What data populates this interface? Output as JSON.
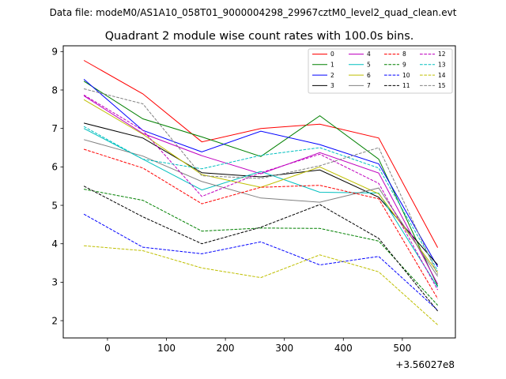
{
  "figure": {
    "suptitle": "Data file: modeM0/AS1A10_058T01_9000004298_29967cztM0_level2_quad_clean.evt"
  },
  "chart_data": {
    "type": "line",
    "title": "Quadrant 2 module wise count rates with 100.0s bins.",
    "xlabel": "",
    "ylabel": "",
    "x_offset_label": "+3.56027e8",
    "xlim": [
      -75,
      590
    ],
    "ylim": [
      1.55,
      9.15
    ],
    "xticks": [
      0,
      100,
      200,
      300,
      400,
      500
    ],
    "xtick_labels": [
      "0",
      "100",
      "200",
      "300",
      "400",
      "500"
    ],
    "yticks": [
      2,
      3,
      4,
      5,
      6,
      7,
      8,
      9
    ],
    "ytick_labels": [
      "2",
      "3",
      "4",
      "5",
      "6",
      "7",
      "8",
      "9"
    ],
    "grid": false,
    "legend_position": "top-right",
    "x": [
      -40,
      60,
      160,
      260,
      360,
      460,
      560
    ],
    "series": [
      {
        "name": "0",
        "color": "#ff0000",
        "dash": "solid",
        "values": [
          8.77,
          7.9,
          6.65,
          7.0,
          7.11,
          6.75,
          3.9
        ]
      },
      {
        "name": "1",
        "color": "#008000",
        "dash": "solid",
        "values": [
          8.23,
          7.25,
          6.78,
          6.27,
          7.33,
          6.2,
          2.9
        ]
      },
      {
        "name": "2",
        "color": "#0000ff",
        "dash": "solid",
        "values": [
          8.28,
          6.95,
          6.39,
          6.93,
          6.58,
          6.08,
          3.4
        ]
      },
      {
        "name": "3",
        "color": "#000000",
        "dash": "solid",
        "values": [
          7.14,
          6.75,
          5.85,
          5.74,
          5.92,
          5.21,
          3.45
        ]
      },
      {
        "name": "4",
        "color": "#bf00bf",
        "dash": "solid",
        "values": [
          7.85,
          6.87,
          6.29,
          5.82,
          6.37,
          5.84,
          2.95
        ]
      },
      {
        "name": "5",
        "color": "#00bfbf",
        "dash": "solid",
        "values": [
          7.0,
          6.2,
          5.4,
          5.88,
          5.34,
          5.32,
          2.87
        ]
      },
      {
        "name": "6",
        "color": "#bfbf00",
        "dash": "solid",
        "values": [
          7.75,
          6.85,
          5.8,
          5.47,
          6.0,
          5.3,
          3.25
        ]
      },
      {
        "name": "7",
        "color": "#808080",
        "dash": "solid",
        "values": [
          6.71,
          6.28,
          5.62,
          5.19,
          5.08,
          5.45,
          3.15
        ]
      },
      {
        "name": "8",
        "color": "#ff0000",
        "dash": "dashed",
        "values": [
          6.46,
          5.97,
          5.04,
          5.47,
          5.52,
          5.17,
          2.57
        ]
      },
      {
        "name": "9",
        "color": "#008000",
        "dash": "dashed",
        "values": [
          5.42,
          5.13,
          4.33,
          4.41,
          4.4,
          4.07,
          2.4
        ]
      },
      {
        "name": "10",
        "color": "#0000ff",
        "dash": "dashed",
        "values": [
          4.77,
          3.91,
          3.74,
          4.05,
          3.45,
          3.67,
          2.27
        ]
      },
      {
        "name": "11",
        "color": "#000000",
        "dash": "dashed",
        "values": [
          5.5,
          4.7,
          4.0,
          4.43,
          5.02,
          4.14,
          2.25
        ]
      },
      {
        "name": "12",
        "color": "#bf00bf",
        "dash": "dashed",
        "values": [
          7.87,
          6.95,
          5.23,
          5.85,
          6.33,
          5.57,
          2.8
        ]
      },
      {
        "name": "13",
        "color": "#00bfbf",
        "dash": "dashed",
        "values": [
          7.05,
          6.2,
          5.95,
          6.3,
          6.5,
          5.97,
          3.3
        ]
      },
      {
        "name": "14",
        "color": "#bfbf00",
        "dash": "dashed",
        "values": [
          3.95,
          3.82,
          3.37,
          3.12,
          3.71,
          3.27,
          1.89
        ]
      },
      {
        "name": "15",
        "color": "#808080",
        "dash": "dashed",
        "values": [
          8.03,
          7.64,
          5.77,
          5.7,
          6.03,
          6.5,
          3.2
        ]
      }
    ]
  }
}
